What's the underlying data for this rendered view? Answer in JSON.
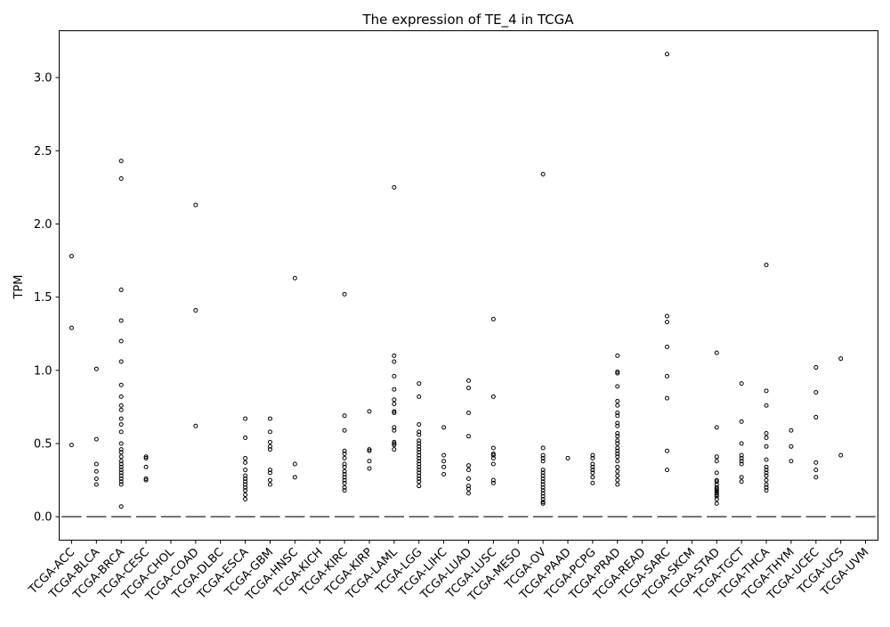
{
  "chart_data": {
    "type": "box",
    "title": "The expression of TE_4 in TCGA",
    "xlabel": "",
    "ylabel": "TPM",
    "ylim": [
      -0.16,
      3.32
    ],
    "yticks": [
      0.0,
      0.5,
      1.0,
      1.5,
      2.0,
      2.5,
      3.0
    ],
    "ytick_labels": [
      "0.0",
      "0.5",
      "1.0",
      "1.5",
      "2.0",
      "2.5",
      "3.0"
    ],
    "grid": false,
    "legend": "none",
    "categories": [
      "TCGA-ACC",
      "TCGA-BLCA",
      "TCGA-BRCA",
      "TCGA-CESC",
      "TCGA-CHOL",
      "TCGA-COAD",
      "TCGA-DLBC",
      "TCGA-ESCA",
      "TCGA-GBM",
      "TCGA-HNSC",
      "TCGA-KICH",
      "TCGA-KIRC",
      "TCGA-KIRP",
      "TCGA-LAML",
      "TCGA-LGG",
      "TCGA-LIHC",
      "TCGA-LUAD",
      "TCGA-LUSC",
      "TCGA-MESO",
      "TCGA-OV",
      "TCGA-PAAD",
      "TCGA-PCPG",
      "TCGA-PRAD",
      "TCGA-READ",
      "TCGA-SARC",
      "TCGA-SKCM",
      "TCGA-STAD",
      "TCGA-TGCT",
      "TCGA-THCA",
      "TCGA-THYM",
      "TCGA-UCEC",
      "TCGA-UCS",
      "TCGA-UVM"
    ],
    "medians": [
      0,
      0,
      0,
      0,
      0,
      0,
      0,
      0,
      0,
      0,
      0,
      0,
      0,
      0,
      0,
      0,
      0,
      0,
      0,
      0,
      0,
      0,
      0,
      0,
      0,
      0,
      0,
      0,
      0,
      0,
      0,
      0,
      0
    ],
    "outliers": [
      [
        1.78,
        1.29,
        0.49
      ],
      [
        1.01,
        0.53,
        0.36,
        0.31,
        0.26,
        0.22
      ],
      [
        2.43,
        2.31,
        1.55,
        1.34,
        1.2,
        1.06,
        0.9,
        0.82,
        0.76,
        0.73,
        0.67,
        0.63,
        0.58,
        0.5,
        0.46,
        0.44,
        0.41,
        0.38,
        0.36,
        0.34,
        0.32,
        0.3,
        0.28,
        0.26,
        0.24,
        0.22,
        0.07
      ],
      [
        0.41,
        0.4,
        0.34,
        0.26,
        0.25
      ],
      [],
      [
        2.13,
        1.41,
        0.62
      ],
      [],
      [
        0.67,
        0.54,
        0.4,
        0.37,
        0.32,
        0.28,
        0.26,
        0.24,
        0.22,
        0.2,
        0.18,
        0.15,
        0.12
      ],
      [
        0.67,
        0.58,
        0.51,
        0.48,
        0.46,
        0.32,
        0.3,
        0.25,
        0.22
      ],
      [
        1.63,
        0.36,
        0.27
      ],
      [],
      [
        1.52,
        0.69,
        0.59,
        0.45,
        0.43,
        0.4,
        0.36,
        0.34,
        0.31,
        0.29,
        0.27,
        0.25,
        0.23,
        0.2,
        0.18
      ],
      [
        0.72,
        0.46,
        0.45,
        0.38,
        0.33
      ],
      [
        2.25,
        1.1,
        1.06,
        0.96,
        0.87,
        0.8,
        0.77,
        0.72,
        0.71,
        0.61,
        0.59,
        0.51,
        0.5,
        0.49,
        0.46
      ],
      [
        0.91,
        0.82,
        0.63,
        0.58,
        0.56,
        0.52,
        0.5,
        0.48,
        0.46,
        0.44,
        0.42,
        0.4,
        0.38,
        0.36,
        0.34,
        0.32,
        0.3,
        0.28,
        0.26,
        0.24,
        0.21
      ],
      [
        0.61,
        0.42,
        0.38,
        0.34,
        0.29
      ],
      [
        0.93,
        0.88,
        0.71,
        0.55,
        0.35,
        0.32,
        0.26,
        0.21,
        0.19,
        0.16
      ],
      [
        1.35,
        0.82,
        0.47,
        0.43,
        0.42,
        0.4,
        0.36,
        0.25,
        0.23
      ],
      [],
      [
        2.34,
        0.47,
        0.42,
        0.4,
        0.38,
        0.32,
        0.3,
        0.28,
        0.26,
        0.24,
        0.22,
        0.2,
        0.18,
        0.16,
        0.14,
        0.12,
        0.1,
        0.09
      ],
      [
        0.4
      ],
      [
        0.42,
        0.4,
        0.36,
        0.34,
        0.32,
        0.3,
        0.27,
        0.23
      ],
      [
        1.1,
        0.99,
        0.98,
        0.89,
        0.79,
        0.76,
        0.71,
        0.69,
        0.64,
        0.62,
        0.57,
        0.55,
        0.52,
        0.5,
        0.47,
        0.45,
        0.43,
        0.41,
        0.38,
        0.34,
        0.31,
        0.28,
        0.25,
        0.22
      ],
      [],
      [
        3.16,
        1.37,
        1.33,
        1.16,
        0.96,
        0.81,
        0.45,
        0.32
      ],
      [],
      [
        1.12,
        0.61,
        0.41,
        0.38,
        0.3,
        0.25,
        0.24,
        0.22,
        0.2,
        0.19,
        0.18,
        0.17,
        0.16,
        0.15,
        0.14,
        0.12,
        0.09
      ],
      [
        0.91,
        0.65,
        0.5,
        0.42,
        0.4,
        0.38,
        0.36,
        0.27,
        0.24
      ],
      [
        1.72,
        0.86,
        0.76,
        0.57,
        0.54,
        0.48,
        0.39,
        0.34,
        0.32,
        0.3,
        0.28,
        0.25,
        0.22,
        0.2,
        0.18
      ],
      [
        0.59,
        0.48,
        0.38
      ],
      [
        1.02,
        0.85,
        0.68,
        0.37,
        0.32,
        0.27
      ],
      [
        1.08,
        0.42
      ],
      []
    ],
    "colors": {
      "marker_edge": "#000000",
      "median_line": "#555555",
      "axis": "#000000"
    }
  }
}
